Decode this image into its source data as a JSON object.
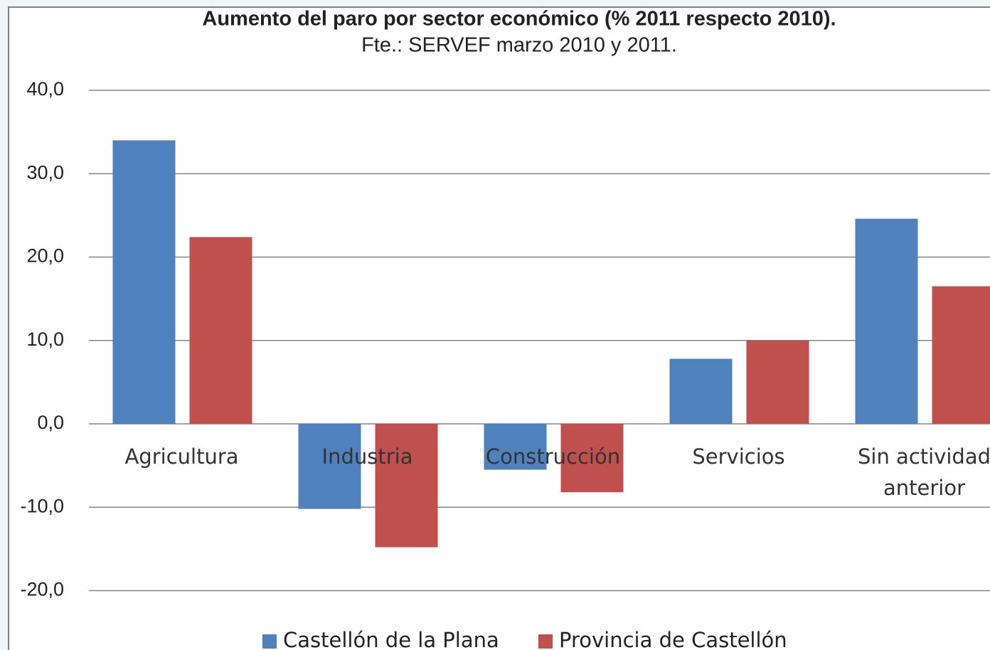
{
  "chart_data": {
    "type": "bar",
    "title": "Aumento del paro por sector económico (% 2011 respecto 2010).",
    "subtitle": "Fte.: SERVEF marzo 2010 y 2011.",
    "categories": [
      "Agricultura",
      "Industria",
      "Construcción",
      "Servicios",
      "Sin actividad anterior"
    ],
    "series": [
      {
        "name": "Castellón de la Plana",
        "color": "#4f81bd",
        "values": [
          34.0,
          -10.2,
          -5.5,
          7.8,
          24.6
        ]
      },
      {
        "name": "Provincia de Castellón",
        "color": "#c0504d",
        "values": [
          22.4,
          -14.8,
          -8.2,
          10.0,
          16.5
        ]
      }
    ],
    "ylim": [
      -20,
      40
    ],
    "yticks": [
      {
        "value": -20,
        "label": "-20,0"
      },
      {
        "value": -10,
        "label": "-10,0"
      },
      {
        "value": 0,
        "label": "0,0"
      },
      {
        "value": 10,
        "label": "10,0"
      },
      {
        "value": 20,
        "label": "20,0"
      },
      {
        "value": 30,
        "label": "30,0"
      },
      {
        "value": 40,
        "label": "40,0"
      }
    ],
    "grid": true,
    "legend": "bottom"
  }
}
